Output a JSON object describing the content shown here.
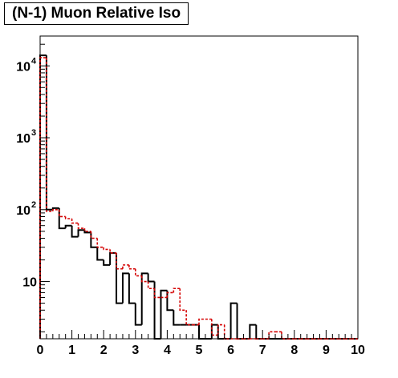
{
  "chart_data": {
    "type": "histogram",
    "title": "(N-1) Muon Relative Iso",
    "xlabel": "",
    "ylabel": "",
    "xlim": [
      0,
      10
    ],
    "ylim": [
      1.6,
      26000
    ],
    "y_scale": "log",
    "bin_width": 0.2,
    "grid": false,
    "legend": "none",
    "x_ticks": [
      "0",
      "1",
      "2",
      "3",
      "4",
      "5",
      "6",
      "7",
      "8",
      "9",
      "10"
    ],
    "y_ticks": [
      {
        "value": 10,
        "base": "10",
        "exp": ""
      },
      {
        "value": 100,
        "base": "10",
        "exp": "2"
      },
      {
        "value": 1000,
        "base": "10",
        "exp": "3"
      },
      {
        "value": 10000,
        "base": "10",
        "exp": "4"
      }
    ],
    "series": [
      {
        "style": "solid",
        "color": "#000000",
        "values": [
          14000,
          100,
          105,
          55,
          60,
          42,
          52,
          48,
          30,
          20,
          17,
          25,
          5,
          13,
          5,
          2.5,
          13,
          10,
          1,
          7.5,
          4,
          2.5,
          2.5,
          2.5,
          2.5,
          1,
          1,
          2.5,
          1,
          1,
          5,
          1,
          1,
          2.5,
          1,
          1,
          1,
          1,
          1,
          1,
          1,
          1,
          1,
          1,
          1,
          1,
          1,
          1,
          1,
          1
        ]
      },
      {
        "style": "dashed",
        "color": "#d40000",
        "values": [
          13000,
          95,
          100,
          80,
          75,
          65,
          55,
          50,
          40,
          30,
          28,
          25,
          15,
          17,
          15,
          12,
          10,
          8,
          6,
          6,
          7,
          8,
          4,
          2.5,
          2.5,
          3,
          3,
          1.8,
          2.5,
          1.5,
          1,
          1,
          1,
          1,
          1.6,
          1.6,
          2,
          2,
          1,
          1,
          1,
          1,
          1,
          1,
          1,
          1,
          1,
          1,
          1,
          1
        ]
      }
    ]
  }
}
